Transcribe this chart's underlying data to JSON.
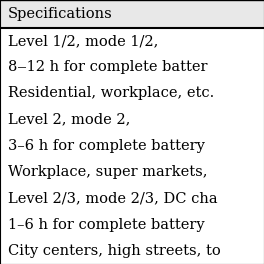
{
  "header": "Specifications",
  "rows": [
    "Level 1/2, mode 1/2,",
    "8‒12 h for complete batter",
    "Residential, workplace, etc.",
    "Level 2, mode 2,",
    "3–6 h for complete battery",
    "Workplace, super markets,",
    "Level 2/3, mode 2/3, DC cha",
    "1–6 h for complete battery",
    "City centers, high streets, to"
  ],
  "header_bg": "#e8e8e8",
  "bg_color": "#ffffff",
  "border_color": "#000000",
  "header_fontsize": 10.5,
  "row_fontsize": 10.5,
  "font_family": "DejaVu Serif"
}
